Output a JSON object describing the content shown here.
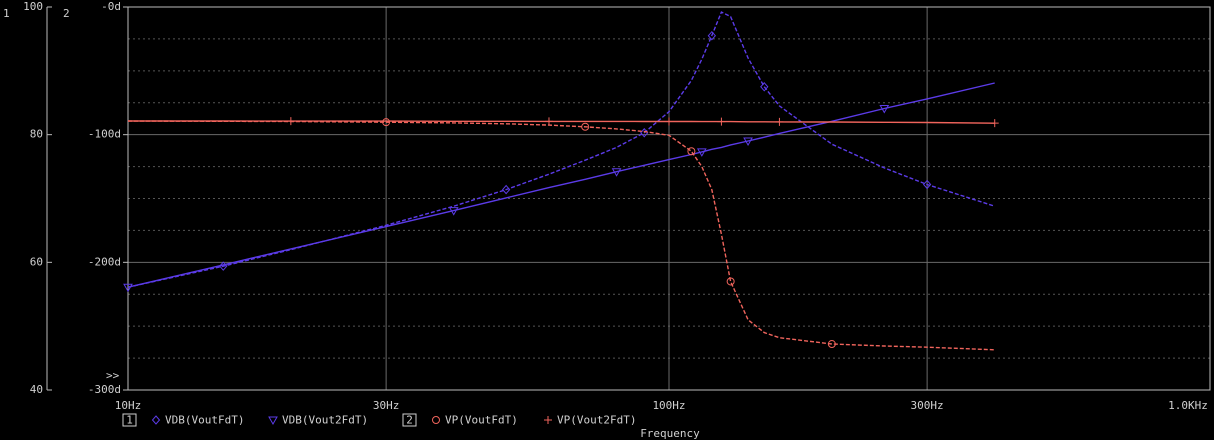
{
  "chart_data": {
    "type": "line",
    "x_label": "Frequency",
    "y_axis_id": "1",
    "y2_axis_id": "2",
    "cursor_marker": ">>",
    "log_x": true,
    "grid": true,
    "xlim": [
      10,
      1000
    ],
    "xticks": [
      {
        "value": 10,
        "label": "10Hz"
      },
      {
        "value": 30,
        "label": "30Hz"
      },
      {
        "value": 100,
        "label": "100Hz"
      },
      {
        "value": 300,
        "label": "300Hz"
      },
      {
        "value": 1000,
        "label": "1.0KHz"
      }
    ],
    "ylim": [
      40,
      100
    ],
    "yticks": [
      40,
      60,
      80,
      100
    ],
    "y_minor_grid": [
      45,
      50,
      55,
      65,
      70,
      75,
      85,
      90,
      95
    ],
    "y2lim": [
      -300,
      0
    ],
    "y2ticks": [
      {
        "value": -300,
        "label": "-300d"
      },
      {
        "value": -200,
        "label": "-200d"
      },
      {
        "value": -100,
        "label": "-100d"
      },
      {
        "value": 0,
        "label": "-0d"
      }
    ],
    "x": [
      10,
      15,
      20,
      30,
      40,
      50,
      60,
      70,
      80,
      90,
      100,
      110,
      115,
      120,
      125,
      130,
      140,
      150,
      160,
      200,
      250,
      300,
      400
    ],
    "series": [
      {
        "name": "VDB(VoutFdT)",
        "color": "#5b3be8",
        "marker": "diamond",
        "dashed": true,
        "axis": "y",
        "values": [
          56.1,
          59.4,
          62,
          65.8,
          68.8,
          71.4,
          73.8,
          76,
          78,
          80.3,
          83.6,
          88.5,
          91.8,
          95.5,
          99.2,
          98.5,
          92,
          87.5,
          84.5,
          78.5,
          74.8,
          72.2,
          68.8
        ]
      },
      {
        "name": "VDB(Vout2FdT)",
        "color": "#5b3be8",
        "marker": "triangle",
        "dashed": false,
        "axis": "y",
        "values": [
          56.1,
          59.6,
          62.1,
          65.6,
          68.1,
          70.1,
          71.7,
          73,
          74.2,
          75.2,
          76.1,
          76.9,
          77.3,
          77.7,
          78,
          78.4,
          79,
          79.6,
          80.2,
          82.1,
          84.1,
          85.6,
          88.1
        ]
      },
      {
        "name": "VP(VoutFdT)",
        "color": "#f0645c",
        "marker": "circle",
        "dashed": true,
        "axis": "y2",
        "values": [
          -89.3,
          -89.5,
          -89.7,
          -90.2,
          -90.8,
          -91.5,
          -92.5,
          -93.8,
          -95.5,
          -97.5,
          -100.5,
          -113,
          -125,
          -143,
          -178,
          -215,
          -245,
          -255,
          -259,
          -264,
          -265.5,
          -266.5,
          -268.5
        ]
      },
      {
        "name": "VP(Vout2FdT)",
        "color": "#f0645c",
        "marker": "plus",
        "dashed": false,
        "axis": "y2",
        "values": [
          -89.3,
          -89.3,
          -89.4,
          -89.4,
          -89.5,
          -89.5,
          -89.6,
          -89.6,
          -89.6,
          -89.7,
          -89.7,
          -89.7,
          -89.8,
          -89.8,
          -89.8,
          -89.8,
          -89.9,
          -89.9,
          -90,
          -90.1,
          -90.3,
          -90.5,
          -91
        ]
      }
    ]
  }
}
